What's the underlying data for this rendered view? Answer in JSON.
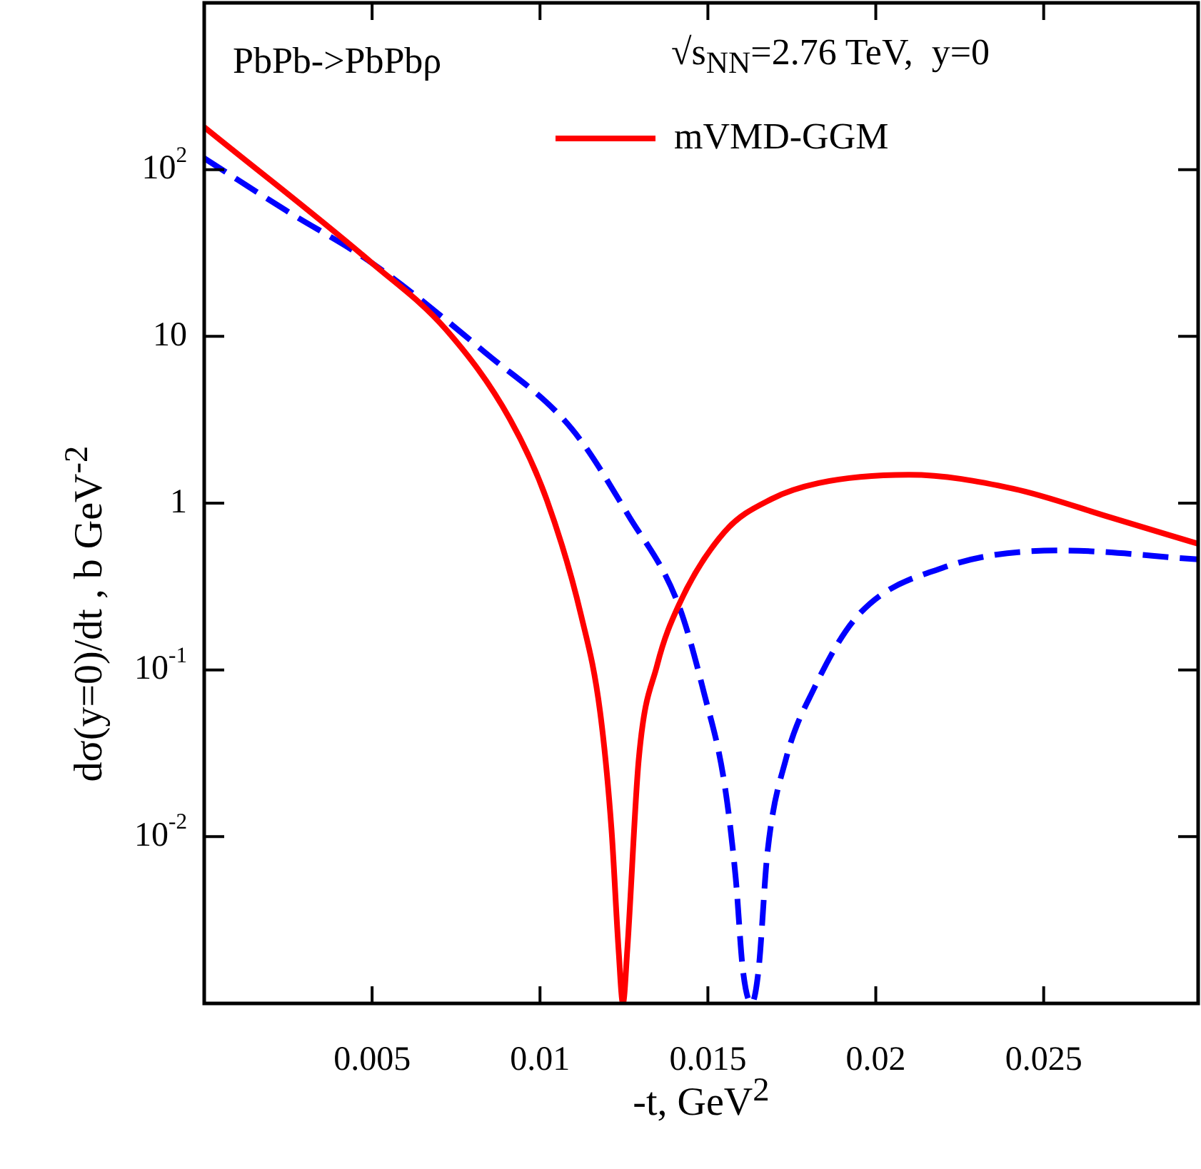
{
  "chart_data": {
    "type": "line",
    "xlabel": "-t, GeV$^{2}$",
    "ylabel": "dσ(y=0)/dt , b GeV$^{-2}$",
    "annotations": [
      "PbPb->PbPbρ",
      "√s$_{NN}$=2.76 TeV,  y=0"
    ],
    "log": "y",
    "grid": false,
    "legend": "top right",
    "marker": "none",
    "xlim": [
      0,
      0.0296
    ],
    "xticks": [
      0.005,
      0.01,
      0.015,
      0.02,
      0.025
    ],
    "ylim": [
      0.001,
      1000
    ],
    "yticks": [
      {
        "value": 0.01,
        "label": "10$^{-2}$"
      },
      {
        "value": 0.1,
        "label": "10$^{-1}$"
      },
      1,
      10,
      {
        "value": 100,
        "label": "10$^{2}$"
      }
    ],
    "series": [
      {
        "name": "mVMD-GGM",
        "color": "#ff0000",
        "line_style": "solid",
        "x": [
          0,
          0.005,
          0.0072,
          0.0091,
          0.0102,
          0.01123,
          0.01179,
          0.01213,
          0.01234,
          0.01247,
          0.0126,
          0.01294,
          0.01349,
          0.01413,
          0.01549,
          0.0169,
          0.0183,
          0.021,
          0.0241,
          0.027,
          0.0296
        ],
        "values": [
          180,
          27.5,
          11,
          3.2,
          1.05,
          0.21,
          0.056,
          0.011,
          0.0021,
          0.001,
          0.0021,
          0.029,
          0.107,
          0.244,
          0.67,
          1.06,
          1.32,
          1.48,
          1.22,
          0.82,
          0.57
        ]
      },
      {
        "color": "#0000ff",
        "line_style": "dashed",
        "x": [
          0,
          0.00243,
          0.005,
          0.0084,
          0.01094,
          0.01264,
          0.01413,
          0.01489,
          0.01549,
          0.01583,
          0.01604,
          0.0163,
          0.01651,
          0.01677,
          0.01732,
          0.01817,
          0.01945,
          0.022,
          0.0255,
          0.0296
        ],
        "values": [
          117,
          57,
          27.5,
          7.9,
          2.8,
          0.84,
          0.244,
          0.072,
          0.021,
          0.0056,
          0.0016,
          0.001,
          0.0016,
          0.0079,
          0.029,
          0.078,
          0.21,
          0.41,
          0.52,
          0.46
        ]
      }
    ]
  }
}
